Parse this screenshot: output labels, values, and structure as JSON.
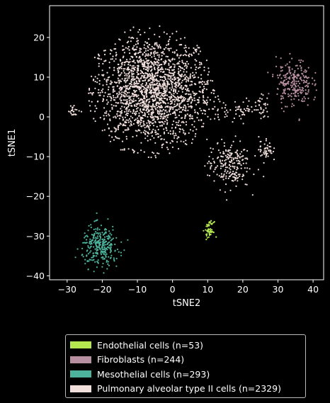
{
  "chart_data": {
    "type": "scatter",
    "title": "",
    "xlabel": "tSNE2",
    "ylabel": "tSNE1",
    "xlim": [
      -35,
      43
    ],
    "ylim": [
      -41,
      28
    ],
    "xticks": [
      -30,
      -20,
      -10,
      0,
      10,
      20,
      30,
      40
    ],
    "yticks": [
      -40,
      -30,
      -20,
      -10,
      0,
      10,
      20
    ],
    "tick_labels_x": [
      "−30",
      "−20",
      "−10",
      "0",
      "10",
      "20",
      "30",
      "40"
    ],
    "tick_labels_y": [
      "−40",
      "−30",
      "−20",
      "−10",
      "0",
      "10",
      "20"
    ],
    "legend_position": "below",
    "series": [
      {
        "name": "Endothelial cells (n=53)",
        "color": "#b5e84f",
        "count": 53,
        "clusters": [
          {
            "cx": 10.5,
            "cy": -28.5,
            "sx": 0.6,
            "sy": 1.0,
            "weight": 1.0
          }
        ]
      },
      {
        "name": "Fibroblasts (n=244)",
        "color": "#b78fa0",
        "count": 244,
        "clusters": [
          {
            "cx": 34.5,
            "cy": 8.5,
            "sx": 2.5,
            "sy": 3.0,
            "weight": 1.0
          }
        ]
      },
      {
        "name": "Mesothelial cells (n=293)",
        "color": "#4db39c",
        "count": 293,
        "clusters": [
          {
            "cx": -20.5,
            "cy": -32.5,
            "sx": 2.6,
            "sy": 2.5,
            "weight": 1.0
          }
        ]
      },
      {
        "name": "Pulmonary alveolar type II cells (n=2329)",
        "color": "#f1dfdc",
        "count": 2329,
        "clusters": [
          {
            "cx": -6,
            "cy": 6.5,
            "sx": 8.5,
            "sy": 7.0,
            "weight": 0.84
          },
          {
            "cx": 16,
            "cy": -12,
            "sx": 3.0,
            "sy": 3.0,
            "weight": 0.09
          },
          {
            "cx": 26.5,
            "cy": -8,
            "sx": 1.0,
            "sy": 1.6,
            "weight": 0.02
          },
          {
            "cx": 25.5,
            "cy": 2.5,
            "sx": 1.0,
            "sy": 1.5,
            "weight": 0.015
          },
          {
            "cx": 20,
            "cy": 2,
            "sx": 1.6,
            "sy": 1.2,
            "weight": 0.015
          },
          {
            "cx": -28,
            "cy": 1.5,
            "sx": 0.8,
            "sy": 0.7,
            "weight": 0.01
          },
          {
            "cx": 14,
            "cy": 2,
            "sx": 2.0,
            "sy": 1.5,
            "weight": 0.01
          }
        ]
      }
    ]
  }
}
